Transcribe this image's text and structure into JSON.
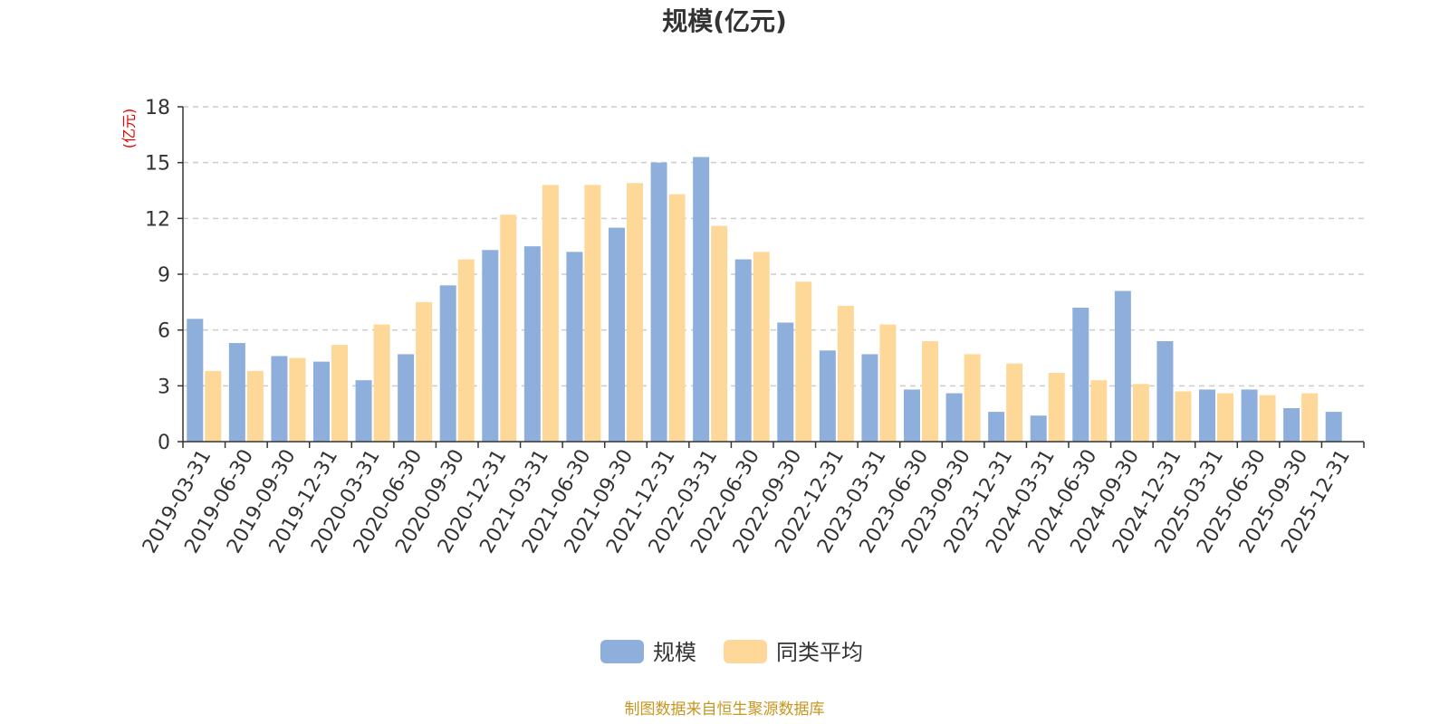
{
  "chart_data": {
    "type": "bar",
    "title": "规模(亿元)",
    "ylabel": "(亿元)",
    "xlabel": "",
    "ylim": [
      0,
      18
    ],
    "yticks": [
      0,
      3,
      6,
      9,
      12,
      15,
      18
    ],
    "grid": true,
    "legend_position": "bottom-center",
    "categories": [
      "2019-03-31",
      "2019-06-30",
      "2019-09-30",
      "2019-12-31",
      "2020-03-31",
      "2020-06-30",
      "2020-09-30",
      "2020-12-31",
      "2021-03-31",
      "2021-06-30",
      "2021-09-30",
      "2021-12-31",
      "2022-03-31",
      "2022-06-30",
      "2022-09-30",
      "2022-12-31",
      "2023-03-31",
      "2023-06-30",
      "2023-09-30",
      "2023-12-31",
      "2024-03-31",
      "2024-06-30",
      "2024-09-30",
      "2024-12-31",
      "2025-03-31",
      "2025-06-30",
      "2025-09-30",
      "2025-12-31"
    ],
    "series": [
      {
        "name": "规模",
        "color": "#8eaedc",
        "values": [
          6.6,
          5.3,
          4.6,
          4.3,
          3.3,
          4.7,
          8.4,
          10.3,
          10.5,
          10.2,
          11.5,
          15.0,
          15.3,
          9.8,
          6.4,
          4.9,
          4.7,
          2.8,
          2.6,
          1.6,
          1.4,
          7.2,
          8.1,
          5.4,
          2.8,
          2.8,
          1.8,
          1.6
        ]
      },
      {
        "name": "同类平均",
        "color": "#fed898",
        "values": [
          3.8,
          3.8,
          4.5,
          5.2,
          6.3,
          7.5,
          9.8,
          12.2,
          13.8,
          13.8,
          13.9,
          13.3,
          11.6,
          10.2,
          8.6,
          7.3,
          6.3,
          5.4,
          4.7,
          4.2,
          3.7,
          3.3,
          3.1,
          2.7,
          2.6,
          2.5,
          2.6,
          null
        ]
      }
    ]
  },
  "footer": {
    "source": "制图数据来自恒生聚源数据库"
  }
}
